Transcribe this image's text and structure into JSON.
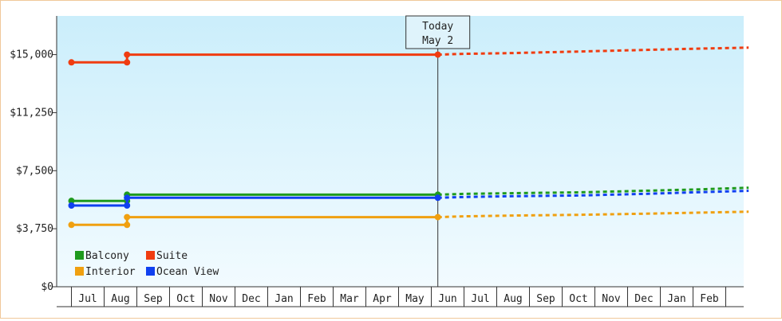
{
  "chart_data": {
    "type": "line",
    "title": "",
    "xlabel": "",
    "ylabel": "",
    "ylim": [
      0,
      17500
    ],
    "y_ticks": [
      0,
      3750,
      7500,
      11250,
      15000
    ],
    "y_tick_labels": [
      "$0",
      "$3,750",
      "$7,500",
      "$11,250",
      "$15,000"
    ],
    "x_tick_labels": [
      "Jul",
      "Aug",
      "Sep",
      "Oct",
      "Nov",
      "Dec",
      "Jan",
      "Feb",
      "Mar",
      "Apr",
      "May",
      "Jun",
      "Jul",
      "Aug",
      "Sep",
      "Oct",
      "Nov",
      "Dec",
      "Jan",
      "Feb"
    ],
    "x_range": [
      -0.5,
      20.2
    ],
    "today_marker": {
      "x": 10.7,
      "line1": "Today",
      "line2": "May 2"
    },
    "grid": false,
    "legend_position": "bottom-left",
    "series": [
      {
        "name": "Balcony",
        "color": "#1e9a1e",
        "solid": [
          [
            -0.5,
            5550
          ],
          [
            1.2,
            5550
          ],
          [
            1.2,
            5950
          ],
          [
            10.7,
            5950
          ]
        ],
        "markers": [
          [
            -0.5,
            5550
          ],
          [
            1.2,
            5550
          ],
          [
            1.2,
            5950
          ],
          [
            10.7,
            5950
          ]
        ],
        "forecast": [
          [
            10.7,
            5950
          ],
          [
            11.5,
            6000
          ],
          [
            13,
            6050
          ],
          [
            15,
            6100
          ],
          [
            17,
            6200
          ],
          [
            18.5,
            6280
          ],
          [
            20.2,
            6400
          ]
        ]
      },
      {
        "name": "Suite",
        "color": "#f03c10",
        "solid": [
          [
            -0.5,
            14500
          ],
          [
            1.2,
            14500
          ],
          [
            1.2,
            15000
          ],
          [
            10.7,
            15000
          ]
        ],
        "markers": [
          [
            -0.5,
            14500
          ],
          [
            1.2,
            14500
          ],
          [
            1.2,
            15000
          ],
          [
            10.7,
            15000
          ]
        ],
        "forecast": [
          [
            10.7,
            15000
          ],
          [
            11.5,
            15050
          ],
          [
            13,
            15100
          ],
          [
            15,
            15200
          ],
          [
            17,
            15300
          ],
          [
            18.5,
            15380
          ],
          [
            20.2,
            15450
          ]
        ]
      },
      {
        "name": "Interior",
        "color": "#f0a010",
        "solid": [
          [
            -0.5,
            4000
          ],
          [
            1.2,
            4000
          ],
          [
            1.2,
            4500
          ],
          [
            10.7,
            4500
          ]
        ],
        "markers": [
          [
            -0.5,
            4000
          ],
          [
            1.2,
            4000
          ],
          [
            1.2,
            4500
          ],
          [
            10.7,
            4500
          ]
        ],
        "forecast": [
          [
            10.7,
            4500
          ],
          [
            11.5,
            4550
          ],
          [
            13,
            4600
          ],
          [
            15,
            4650
          ],
          [
            17,
            4720
          ],
          [
            18.5,
            4780
          ],
          [
            20.2,
            4850
          ]
        ]
      },
      {
        "name": "Ocean View",
        "color": "#1040f0",
        "solid": [
          [
            -0.5,
            5250
          ],
          [
            1.2,
            5250
          ],
          [
            1.2,
            5750
          ],
          [
            10.7,
            5750
          ]
        ],
        "markers": [
          [
            -0.5,
            5250
          ],
          [
            1.2,
            5250
          ],
          [
            1.2,
            5750
          ],
          [
            10.7,
            5750
          ]
        ],
        "forecast": [
          [
            10.7,
            5750
          ],
          [
            11.5,
            5800
          ],
          [
            13,
            5850
          ],
          [
            15,
            5900
          ],
          [
            17,
            6000
          ],
          [
            18.5,
            6100
          ],
          [
            20.2,
            6200
          ]
        ]
      }
    ]
  }
}
